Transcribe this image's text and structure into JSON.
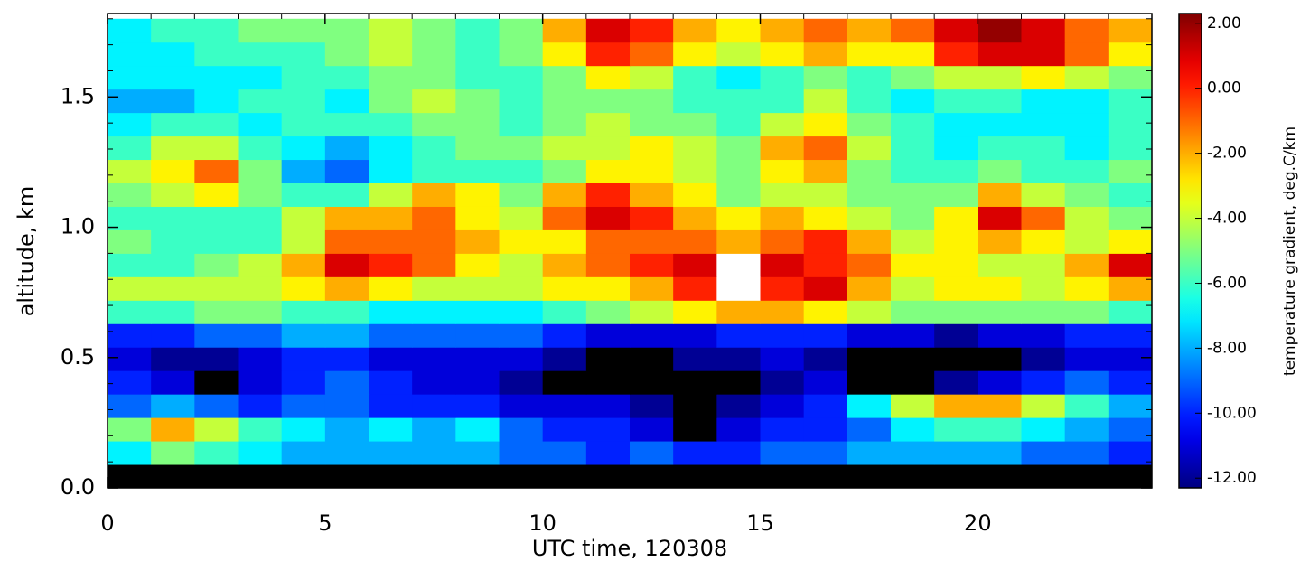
{
  "chart_data": {
    "type": "heatmap",
    "x_label": "UTC time, 120308",
    "y_label": "altitude, km",
    "colorbar_label": "temperature gradient, deg.C/km",
    "colormap": "jet",
    "under_color": "#000000",
    "missing_color": "#ffffff",
    "xlim": [
      0,
      24
    ],
    "ylim": [
      0,
      1.82
    ],
    "xticks": [
      0,
      5,
      10,
      15,
      20
    ],
    "yticks": [
      {
        "value": 0,
        "label": "0.0"
      },
      0.5,
      {
        "value": 1,
        "label": "1.0"
      },
      1.5
    ],
    "xminorticks": [
      1,
      2,
      3,
      4,
      6,
      7,
      8,
      9,
      11,
      12,
      13,
      14,
      16,
      17,
      18,
      19,
      21,
      22,
      23
    ],
    "yminorticks": [
      0.1,
      0.2,
      0.3,
      0.4,
      0.6,
      0.7,
      0.8,
      0.9,
      1.1,
      1.2,
      1.3,
      1.4,
      1.6,
      1.7,
      1.8
    ],
    "clim": [
      -12.3,
      2.3
    ],
    "cticks": [
      {
        "value": 2,
        "label": "2.00"
      },
      {
        "value": 0,
        "label": "0.00"
      },
      {
        "value": -2,
        "label": "-2.00"
      },
      {
        "value": -4,
        "label": "-4.00"
      },
      {
        "value": -6,
        "label": "-6.00"
      },
      {
        "value": -8,
        "label": "-8.00"
      },
      {
        "value": -10,
        "label": "-10.00"
      },
      {
        "value": -12,
        "label": "-12.00"
      }
    ],
    "xbins": [
      0,
      1,
      2,
      3,
      4,
      5,
      6,
      7,
      8,
      9,
      10,
      11,
      12,
      13,
      14,
      15,
      16,
      17,
      18,
      19,
      20,
      21,
      22,
      23,
      24
    ],
    "ybins": [
      0,
      0.09,
      0.18,
      0.27,
      0.36,
      0.45,
      0.54,
      0.63,
      0.72,
      0.81,
      0.9,
      0.99,
      1.08,
      1.17,
      1.26,
      1.35,
      1.44,
      1.53,
      1.62,
      1.71,
      1.8
    ],
    "z": [
      [
        -13,
        -13,
        -13,
        -13,
        -13,
        -13,
        -13,
        -13,
        -13,
        -13,
        -13,
        -13,
        -13,
        -13,
        -13,
        -13,
        -13,
        -13,
        -13,
        -13,
        -13,
        -13,
        -13,
        -13
      ],
      [
        -7,
        -5,
        -6,
        -7,
        -8,
        -8,
        -8,
        -8,
        -8,
        -9,
        -9,
        -10,
        -9,
        -10,
        -10,
        -9,
        -9,
        -8,
        -8,
        -8,
        -8,
        -9,
        -9,
        -10
      ],
      [
        -5,
        -2,
        -4,
        -6,
        -7,
        -8,
        -7,
        -8,
        -7,
        -9,
        -10,
        -10,
        -11,
        -13,
        -11,
        -10,
        -10,
        -9,
        -7,
        -6,
        -6,
        -7,
        -8,
        -9
      ],
      [
        -9,
        -8,
        -9,
        -10,
        -9,
        -9,
        -10,
        -10,
        -10,
        -11,
        -11,
        -11,
        -12,
        -13,
        -12,
        -11,
        -10,
        -7,
        -4,
        -2,
        -2,
        -4,
        -6,
        -8
      ],
      [
        -10,
        -11,
        -13,
        -11,
        -10,
        -9,
        -10,
        -11,
        -11,
        -12,
        -13,
        -13,
        -13,
        -13,
        -13,
        -12,
        -11,
        -13,
        -13,
        -12,
        -11,
        -10,
        -9,
        -10
      ],
      [
        -11,
        -12,
        -12,
        -11,
        -10,
        -10,
        -11,
        -11,
        -11,
        -11,
        -12,
        -13,
        -13,
        -12,
        -12,
        -11,
        -12,
        -13,
        -13,
        -13,
        -13,
        -12,
        -11,
        -11
      ],
      [
        -10,
        -10,
        -9,
        -9,
        -8,
        -8,
        -9,
        -9,
        -9,
        -9,
        -10,
        -11,
        -11,
        -11,
        -10,
        -10,
        -10,
        -11,
        -11,
        -12,
        -11,
        -11,
        -10,
        -10
      ],
      [
        -6,
        -6,
        -5,
        -5,
        -6,
        -6,
        -7,
        -7,
        -7,
        -7,
        -6,
        -5,
        -4,
        -3,
        -2,
        -2,
        -3,
        -4,
        -5,
        -5,
        -5,
        -5,
        -5,
        -6
      ],
      [
        -4,
        -4,
        -4,
        -4,
        -3,
        -2,
        -3,
        -4,
        -4,
        -4,
        -3,
        -3,
        -2,
        0,
        null,
        0,
        1,
        -2,
        -4,
        -3,
        -3,
        -4,
        -3,
        -2
      ],
      [
        -6,
        -6,
        -5,
        -4,
        -2,
        1,
        0,
        -1,
        -3,
        -4,
        -2,
        -1,
        0,
        1,
        null,
        1,
        0,
        -1,
        -3,
        -3,
        -4,
        -4,
        -2,
        1
      ],
      [
        -5,
        -6,
        -6,
        -6,
        -4,
        -1,
        -1,
        -1,
        -2,
        -3,
        -3,
        -1,
        -1,
        -1,
        -2,
        -1,
        0,
        -2,
        -4,
        -3,
        -2,
        -3,
        -4,
        -3
      ],
      [
        -6,
        -6,
        -6,
        -6,
        -4,
        -2,
        -2,
        -1,
        -3,
        -4,
        -1,
        1,
        0,
        -2,
        -3,
        -2,
        -3,
        -4,
        -5,
        -3,
        1,
        -1,
        -4,
        -5
      ],
      [
        -5,
        -4,
        -3,
        -5,
        -6,
        -6,
        -4,
        -2,
        -3,
        -5,
        -2,
        0,
        -2,
        -3,
        -5,
        -4,
        -4,
        -5,
        -5,
        -5,
        -2,
        -4,
        -5,
        -6
      ],
      [
        -4,
        -3,
        -1,
        -5,
        -8,
        -9,
        -7,
        -6,
        -6,
        -6,
        -5,
        -3,
        -3,
        -4,
        -5,
        -3,
        -2,
        -5,
        -6,
        -6,
        -5,
        -6,
        -6,
        -5
      ],
      [
        -6,
        -4,
        -4,
        -6,
        -7,
        -8,
        -7,
        -6,
        -5,
        -5,
        -4,
        -4,
        -3,
        -4,
        -5,
        -2,
        -1,
        -4,
        -6,
        -7,
        -6,
        -6,
        -7,
        -6
      ],
      [
        -7,
        -6,
        -6,
        -7,
        -6,
        -6,
        -6,
        -5,
        -5,
        -6,
        -5,
        -4,
        -5,
        -5,
        -6,
        -4,
        -3,
        -5,
        -6,
        -7,
        -7,
        -7,
        -7,
        -6
      ],
      [
        -8,
        -8,
        -7,
        -6,
        -6,
        -7,
        -5,
        -4,
        -5,
        -6,
        -5,
        -5,
        -5,
        -6,
        -6,
        -6,
        -4,
        -6,
        -7,
        -6,
        -6,
        -7,
        -7,
        -6
      ],
      [
        -7,
        -7,
        -7,
        -7,
        -6,
        -6,
        -5,
        -5,
        -6,
        -6,
        -5,
        -3,
        -4,
        -6,
        -7,
        -6,
        -5,
        -6,
        -5,
        -4,
        -4,
        -3,
        -4,
        -5
      ],
      [
        -7,
        -7,
        -6,
        -6,
        -6,
        -5,
        -4,
        -5,
        -6,
        -5,
        -3,
        0,
        -1,
        -3,
        -4,
        -3,
        -2,
        -3,
        -3,
        0,
        1,
        1,
        -1,
        -3
      ],
      [
        -7,
        -6,
        -6,
        -5,
        -5,
        -5,
        -4,
        -5,
        -6,
        -5,
        -2,
        1,
        0,
        -2,
        -3,
        -2,
        -1,
        -2,
        -1,
        1,
        2,
        1,
        -1,
        -2
      ]
    ]
  }
}
